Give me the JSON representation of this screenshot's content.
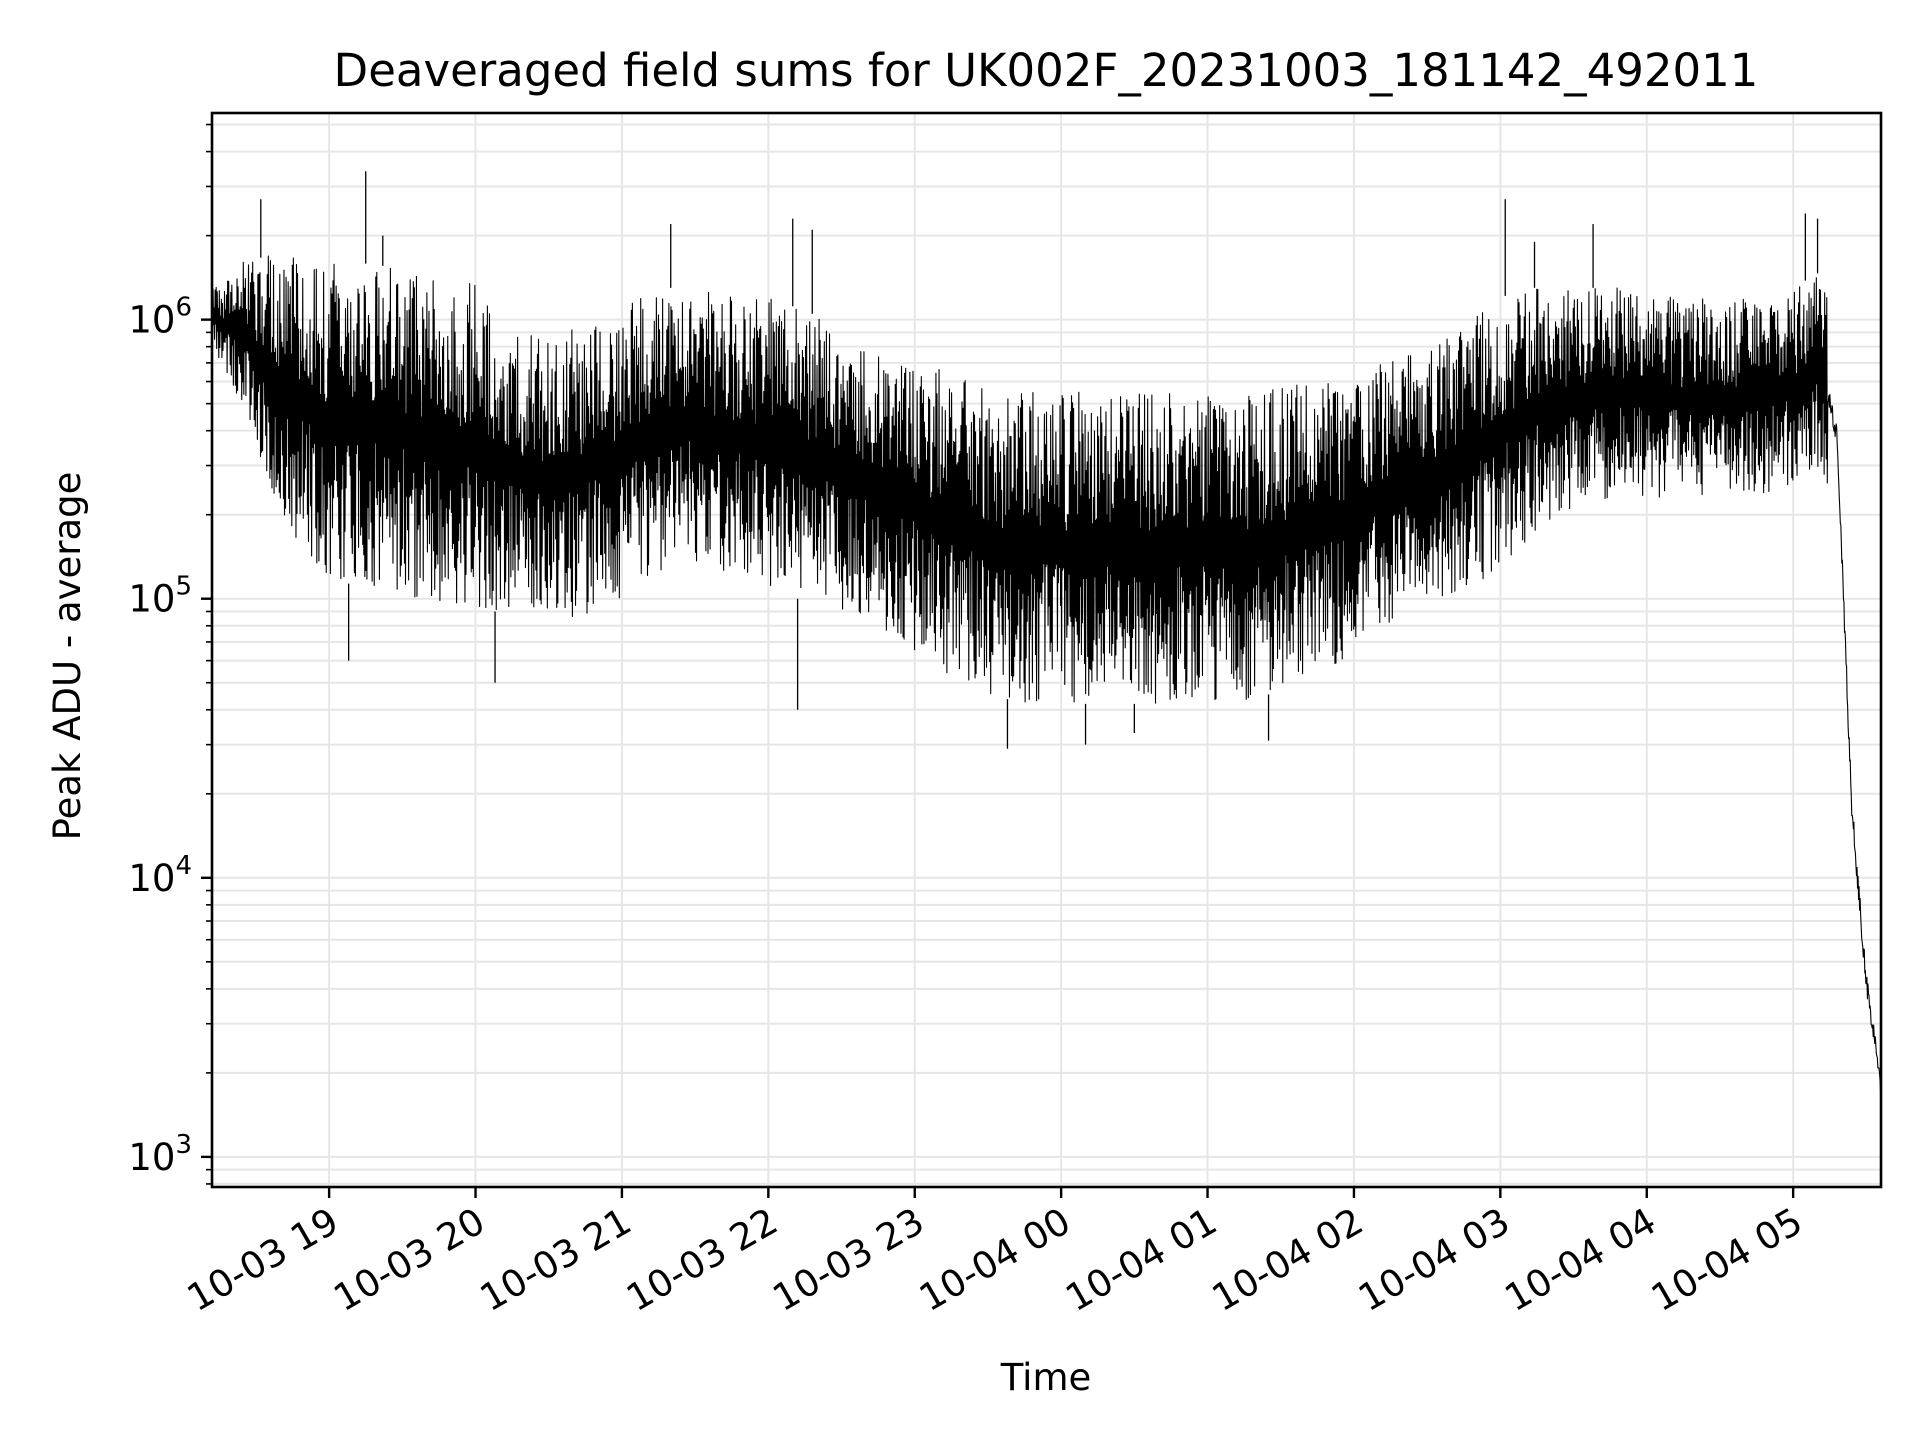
{
  "chart_data": {
    "type": "line",
    "title": "Deaveraged field sums for UK002F_20231003_181142_492011",
    "xlabel": "Time",
    "ylabel": "Peak ADU - average",
    "yscale": "log",
    "xlim": [
      "2023-10-03 18:12",
      "2023-10-04 05:36"
    ],
    "ylim": [
      780,
      5500000
    ],
    "grid": true,
    "legend": "none",
    "line_color": "#000000",
    "grid_color": "#e6e6e6",
    "x_ticks": [
      "10-03 19",
      "10-03 20",
      "10-03 21",
      "10-03 22",
      "10-03 23",
      "10-04 00",
      "10-04 01",
      "10-04 02",
      "10-04 03",
      "10-04 04",
      "10-04 05"
    ],
    "x_tick_times": [
      "2023-10-03 19:00",
      "2023-10-03 20:00",
      "2023-10-03 21:00",
      "2023-10-03 22:00",
      "2023-10-03 23:00",
      "2023-10-04 00:00",
      "2023-10-04 01:00",
      "2023-10-04 02:00",
      "2023-10-04 03:00",
      "2023-10-04 04:00",
      "2023-10-04 05:00"
    ],
    "y_ticks": [
      {
        "value": 1000,
        "base": "10",
        "exp": "3"
      },
      {
        "value": 10000,
        "base": "10",
        "exp": "4"
      },
      {
        "value": 100000,
        "base": "10",
        "exp": "5"
      },
      {
        "value": 1000000,
        "base": "10",
        "exp": "6"
      }
    ],
    "series": [
      {
        "x": [
          "2023-10-03 18:12",
          "2023-10-03 18:24",
          "2023-10-03 18:36",
          "2023-10-03 18:48",
          "2023-10-03 19:00",
          "2023-10-03 19:12",
          "2023-10-03 19:24",
          "2023-10-03 19:36",
          "2023-10-03 19:48",
          "2023-10-03 20:00",
          "2023-10-03 20:12",
          "2023-10-03 20:24",
          "2023-10-03 20:36",
          "2023-10-03 20:48",
          "2023-10-03 21:00",
          "2023-10-03 21:12",
          "2023-10-03 21:24",
          "2023-10-03 21:36",
          "2023-10-03 21:48",
          "2023-10-03 22:00",
          "2023-10-03 22:12",
          "2023-10-03 22:24",
          "2023-10-03 22:36",
          "2023-10-03 22:48",
          "2023-10-03 23:00",
          "2023-10-03 23:12",
          "2023-10-03 23:24",
          "2023-10-03 23:36",
          "2023-10-03 23:48",
          "2023-10-04 00:00",
          "2023-10-04 00:12",
          "2023-10-04 00:24",
          "2023-10-04 00:36",
          "2023-10-04 00:48",
          "2023-10-04 01:00",
          "2023-10-04 01:12",
          "2023-10-04 01:24",
          "2023-10-04 01:36",
          "2023-10-04 01:48",
          "2023-10-04 02:00",
          "2023-10-04 02:12",
          "2023-10-04 02:24",
          "2023-10-04 02:36",
          "2023-10-04 02:48",
          "2023-10-04 03:00",
          "2023-10-04 03:12",
          "2023-10-04 03:24",
          "2023-10-04 03:36",
          "2023-10-04 03:48",
          "2023-10-04 04:00",
          "2023-10-04 04:12",
          "2023-10-04 04:24",
          "2023-10-04 04:36",
          "2023-10-04 04:48",
          "2023-10-04 05:00",
          "2023-10-04 05:12",
          "2023-10-04 05:18",
          "2023-10-04 05:24",
          "2023-10-04 05:30",
          "2023-10-04 05:36"
        ],
        "upper": [
          1300000,
          1600000,
          1700000,
          1700000,
          1600000,
          1600000,
          1550000,
          1500000,
          1450000,
          1350000,
          1000000,
          900000,
          900000,
          1000000,
          1100000,
          1300000,
          1300000,
          1250000,
          1200000,
          1200000,
          1100000,
          1000000,
          900000,
          800000,
          750000,
          650000,
          600000,
          550000,
          550000,
          550000,
          550000,
          550000,
          550000,
          550000,
          550000,
          550000,
          550000,
          600000,
          600000,
          650000,
          700000,
          750000,
          850000,
          1000000,
          1200000,
          1300000,
          1300000,
          1300000,
          1300000,
          1250000,
          1200000,
          1200000,
          1200000,
          1200000,
          1300000,
          1500000,
          1000000,
          40000,
          7000,
          2600
        ],
        "lower": [
          800000,
          500000,
          250000,
          150000,
          120000,
          110000,
          110000,
          100000,
          95000,
          90000,
          90000,
          85000,
          80000,
          90000,
          95000,
          120000,
          140000,
          130000,
          120000,
          110000,
          100000,
          95000,
          85000,
          75000,
          65000,
          55000,
          48000,
          44000,
          42000,
          42000,
          42000,
          42000,
          42000,
          42000,
          42000,
          42000,
          45000,
          50000,
          55000,
          65000,
          80000,
          90000,
          100000,
          110000,
          130000,
          160000,
          200000,
          220000,
          230000,
          230000,
          230000,
          230000,
          230000,
          230000,
          260000,
          300000,
          150000,
          8000,
          2500,
          1200
        ],
        "spikes_high": [
          2700000,
          3400000,
          2000000,
          2200000,
          2300000,
          2100000,
          1900000,
          2700000,
          2200000,
          2400000,
          2300000
        ],
        "spikes_low": [
          29000,
          30000,
          31000,
          33000,
          40000,
          50000,
          60000
        ]
      }
    ]
  }
}
